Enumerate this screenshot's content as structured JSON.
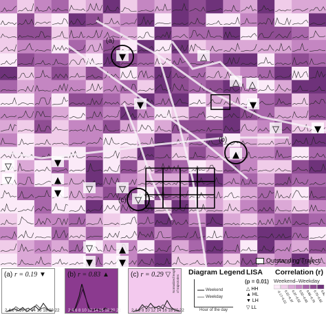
{
  "map_labels": {
    "a": "(a)",
    "b": "(b)",
    "c": "(c)"
  },
  "panels": [
    {
      "label": "(a)",
      "r_label": "r = 0.19",
      "symbol": "▼",
      "bg": "#ffffff",
      "x_ticks": [
        "2",
        "4",
        "6",
        "8",
        "10",
        "12",
        "14",
        "16",
        "18",
        "20",
        "22"
      ]
    },
    {
      "label": "(b)",
      "r_label": "r = 0.83",
      "symbol": "▲",
      "bg": "#8b3a8f",
      "x_ticks": [
        "2",
        "4",
        "6",
        "8",
        "10",
        "12",
        "14",
        "16",
        "18",
        "20",
        "22"
      ]
    },
    {
      "label": "(c)",
      "r_label": "r = 0.29",
      "symbol": "▽",
      "bg": "#f3c9ee",
      "x_ticks": [
        "2",
        "4",
        "6",
        "8",
        "10",
        "12",
        "14",
        "16",
        "18",
        "20",
        "22"
      ]
    }
  ],
  "diagram_legend": {
    "title": "Diagram Legend",
    "y_label": "Normalized length of trajectories",
    "x_label": "Hour of the day",
    "series": [
      "Weekend",
      "Weekday"
    ]
  },
  "lisa": {
    "title": "LISA",
    "subtitle": "(p = 0.01)",
    "items": [
      {
        "symbol": "△",
        "label": "HH"
      },
      {
        "symbol": "▲",
        "label": "HL"
      },
      {
        "symbol": "▼",
        "label": "LH"
      },
      {
        "symbol": "▽",
        "label": "LL"
      }
    ]
  },
  "correlation": {
    "title": "Correlation (r)",
    "subtitle": "Weekend–Weekday",
    "bins": [
      "-0.17~0.22",
      "0.22~0.37",
      "0.37~0.52",
      "0.52~0.65",
      "0.65~0.79",
      "0.79~0.82",
      "0.82~0.93"
    ],
    "colors": [
      "#fbeaf8",
      "#f0cce9",
      "#dba8d6",
      "#c486c2",
      "#a866aa",
      "#8f4d93",
      "#6e327a"
    ]
  },
  "outstanding": {
    "label": "Outstanding Traject."
  },
  "colors": {
    "map_background": "#b07ab6",
    "white_roads": "#f6eef6",
    "circle": "#000000"
  }
}
